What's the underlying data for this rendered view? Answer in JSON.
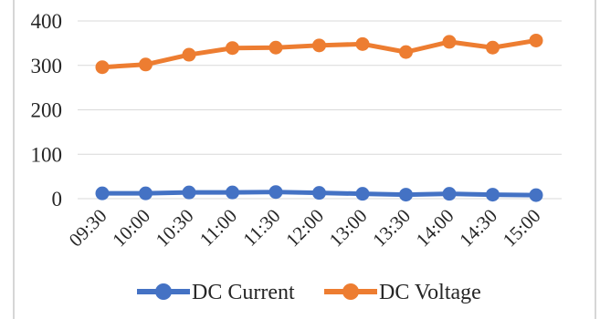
{
  "chart_data": {
    "type": "line",
    "title": "",
    "xlabel": "",
    "ylabel": "",
    "x": [
      "09:30",
      "10:00",
      "10:30",
      "11:00",
      "11:30",
      "12:00",
      "13:00",
      "13:30",
      "14:00",
      "14:30",
      "15:00"
    ],
    "ylim": [
      0,
      400
    ],
    "yticks": [
      "0",
      "100",
      "200",
      "300",
      "400"
    ],
    "grid": true,
    "legend": "bottom",
    "series": [
      {
        "name": "DC Current",
        "color": "#4472c4",
        "values": [
          12,
          12,
          14,
          14,
          15,
          13,
          11,
          9,
          11,
          9,
          8
        ]
      },
      {
        "name": "DC Voltage",
        "color": "#ed7d31",
        "values": [
          296,
          302,
          324,
          339,
          340,
          345,
          348,
          330,
          353,
          340,
          356
        ]
      }
    ]
  }
}
